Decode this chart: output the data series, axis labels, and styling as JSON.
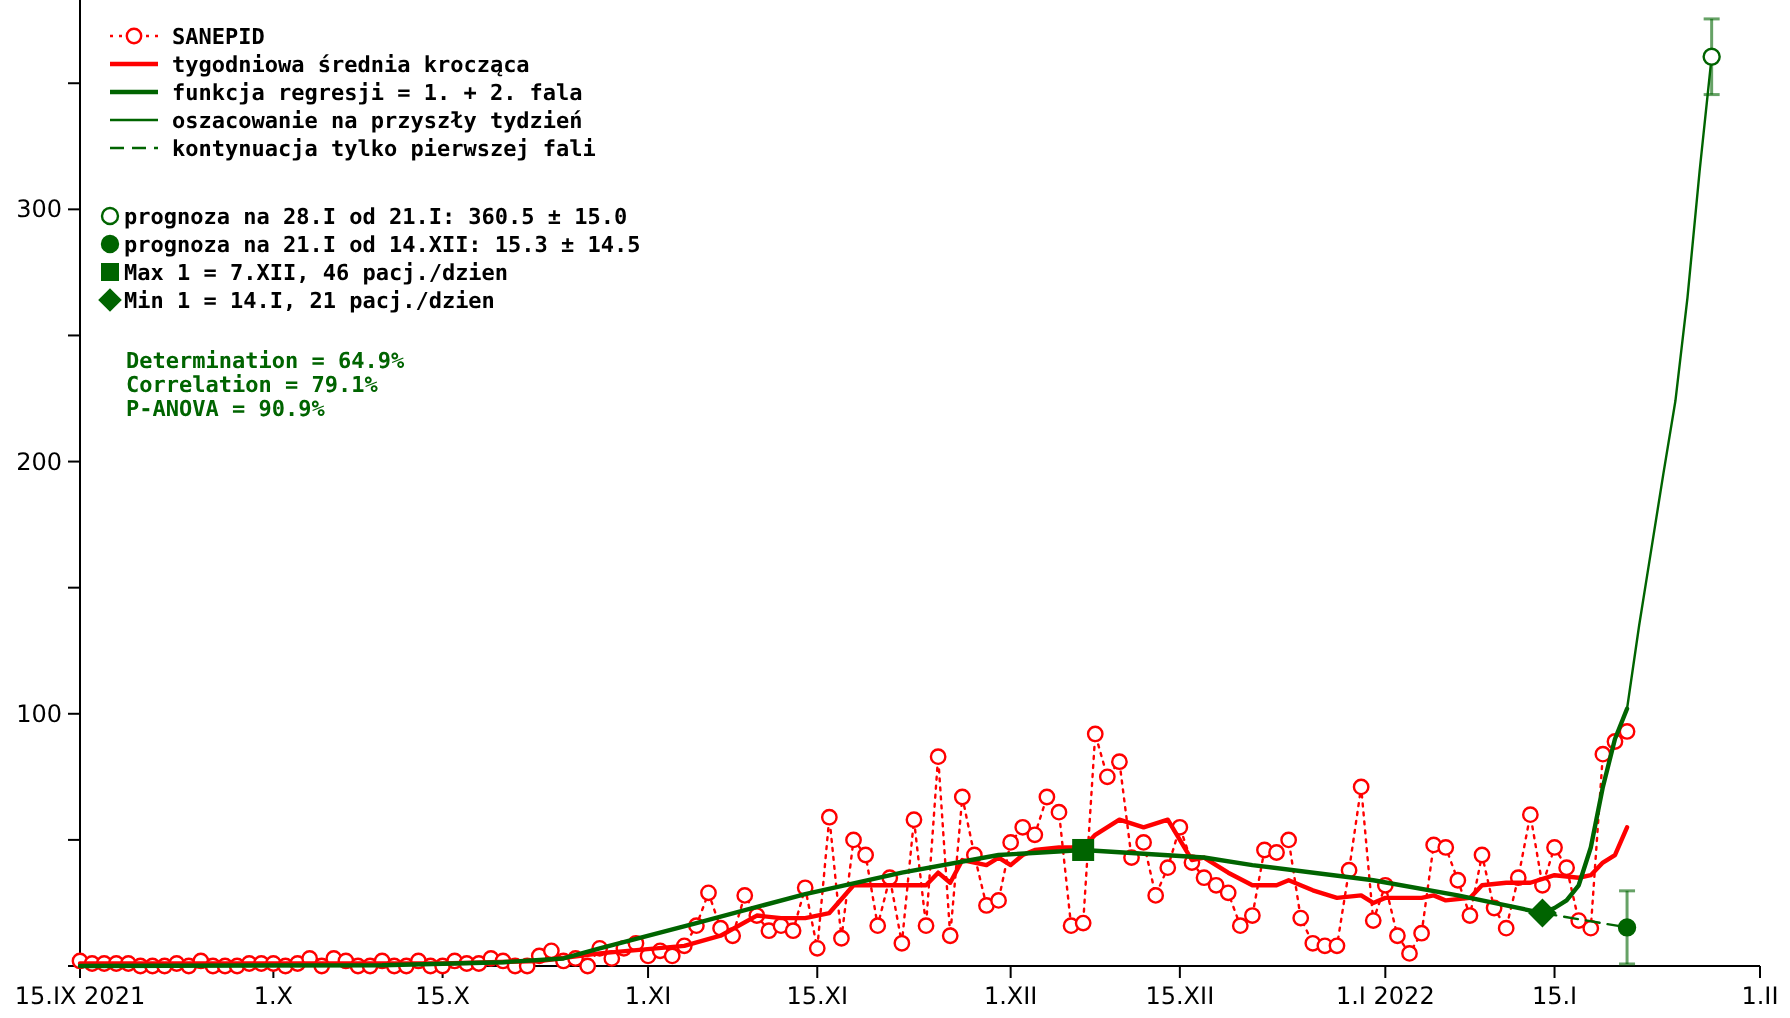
{
  "chart_data": {
    "type": "line",
    "xlim": [
      "2021-09-15",
      "2022-02-01"
    ],
    "ylim": [
      0,
      383
    ],
    "xticks": [
      {
        "value": "2021-09-15",
        "label": "15.IX 2021"
      },
      {
        "value": "2021-10-01",
        "label": "1.X"
      },
      {
        "value": "2021-10-15",
        "label": "15.X"
      },
      {
        "value": "2021-11-01",
        "label": "1.XI"
      },
      {
        "value": "2021-11-15",
        "label": "15.XI"
      },
      {
        "value": "2021-12-01",
        "label": "1.XII"
      },
      {
        "value": "2021-12-15",
        "label": "15.XII"
      },
      {
        "value": "2022-01-01",
        "label": "1.I 2022"
      },
      {
        "value": "2022-01-15",
        "label": "15.I"
      },
      {
        "value": "2022-02-01",
        "label": "1.II"
      }
    ],
    "yticks": [
      {
        "value": 0,
        "label": null
      },
      {
        "value": 50,
        "label": null
      },
      100,
      {
        "value": 150,
        "label": null
      },
      200,
      {
        "value": 250,
        "label": null
      },
      300,
      {
        "value": 350,
        "label": null
      }
    ],
    "grid": false,
    "legend": "top left",
    "annotations": [
      "Determination = 64.9%",
      "Correlation = 79.1%",
      "P-ANOVA = 90.9%"
    ],
    "series": [
      {
        "name": "SANEPID",
        "color": "#ff0000",
        "line_style": "dotted",
        "marker": "circle",
        "x": [
          "2021-09-15",
          "2021-09-16",
          "2021-09-17",
          "2021-09-18",
          "2021-09-19",
          "2021-09-20",
          "2021-09-21",
          "2021-09-22",
          "2021-09-23",
          "2021-09-24",
          "2021-09-25",
          "2021-09-26",
          "2021-09-27",
          "2021-09-28",
          "2021-09-29",
          "2021-09-30",
          "2021-10-01",
          "2021-10-02",
          "2021-10-03",
          "2021-10-04",
          "2021-10-05",
          "2021-10-06",
          "2021-10-07",
          "2021-10-08",
          "2021-10-09",
          "2021-10-10",
          "2021-10-11",
          "2021-10-12",
          "2021-10-13",
          "2021-10-14",
          "2021-10-15",
          "2021-10-16",
          "2021-10-17",
          "2021-10-18",
          "2021-10-19",
          "2021-10-20",
          "2021-10-21",
          "2021-10-22",
          "2021-10-23",
          "2021-10-24",
          "2021-10-25",
          "2021-10-26",
          "2021-10-27",
          "2021-10-28",
          "2021-10-29",
          "2021-10-30",
          "2021-10-31",
          "2021-11-01",
          "2021-11-02",
          "2021-11-03",
          "2021-11-04",
          "2021-11-05",
          "2021-11-06",
          "2021-11-07",
          "2021-11-08",
          "2021-11-09",
          "2021-11-10",
          "2021-11-11",
          "2021-11-12",
          "2021-11-13",
          "2021-11-14",
          "2021-11-15",
          "2021-11-16",
          "2021-11-17",
          "2021-11-18",
          "2021-11-19",
          "2021-11-20",
          "2021-11-21",
          "2021-11-22",
          "2021-11-23",
          "2021-11-24",
          "2021-11-25",
          "2021-11-26",
          "2021-11-27",
          "2021-11-28",
          "2021-11-29",
          "2021-11-30",
          "2021-12-01",
          "2021-12-02",
          "2021-12-03",
          "2021-12-04",
          "2021-12-05",
          "2021-12-06",
          "2021-12-07",
          "2021-12-08",
          "2021-12-09",
          "2021-12-10",
          "2021-12-11",
          "2021-12-12",
          "2021-12-13",
          "2021-12-14",
          "2021-12-15",
          "2021-12-16",
          "2021-12-17",
          "2021-12-18",
          "2021-12-19",
          "2021-12-20",
          "2021-12-21",
          "2021-12-22",
          "2021-12-23",
          "2021-12-24",
          "2021-12-25",
          "2021-12-26",
          "2021-12-27",
          "2021-12-28",
          "2021-12-29",
          "2021-12-30",
          "2021-12-31",
          "2022-01-01",
          "2022-01-02",
          "2022-01-03",
          "2022-01-04",
          "2022-01-05",
          "2022-01-06",
          "2022-01-07",
          "2022-01-08",
          "2022-01-09",
          "2022-01-10",
          "2022-01-11",
          "2022-01-12",
          "2022-01-13",
          "2022-01-14",
          "2022-01-15",
          "2022-01-16",
          "2022-01-17",
          "2022-01-18",
          "2022-01-19",
          "2022-01-20",
          "2022-01-21"
        ],
        "values": [
          2,
          1,
          1,
          1,
          1,
          0,
          0,
          0,
          1,
          0,
          2,
          0,
          0,
          0,
          1,
          1,
          1,
          0,
          1,
          3,
          0,
          3,
          2,
          0,
          0,
          2,
          0,
          0,
          2,
          0,
          0,
          2,
          1,
          1,
          3,
          2,
          0,
          0,
          4,
          6,
          2,
          3,
          0,
          7,
          3,
          7,
          9,
          4,
          6,
          4,
          8,
          16,
          29,
          15,
          12,
          28,
          20,
          14,
          16,
          14,
          31,
          7,
          59,
          11,
          50,
          44,
          16,
          35,
          9,
          58,
          16,
          83,
          12,
          67,
          44,
          24,
          26,
          49,
          55,
          52,
          67,
          61,
          16,
          17,
          92,
          75,
          81,
          43,
          49,
          28,
          39,
          55,
          41,
          35,
          32,
          29,
          16,
          20,
          46,
          45,
          50,
          19,
          9,
          8,
          8,
          38,
          71,
          18,
          32,
          12,
          5,
          13,
          48,
          47,
          34,
          20,
          44,
          23,
          15,
          35,
          60,
          32,
          47,
          39,
          18,
          15,
          84,
          89,
          93
        ]
      },
      {
        "name": "tygodniowa średnia krocząca",
        "color": "#ff0000",
        "line_style": "solid",
        "marker": "none",
        "x": [
          "2021-09-15",
          "2021-09-25",
          "2021-10-05",
          "2021-10-15",
          "2021-10-23",
          "2021-10-28",
          "2021-11-04",
          "2021-11-07",
          "2021-11-10",
          "2021-11-12",
          "2021-11-14",
          "2021-11-16",
          "2021-11-18",
          "2021-11-20",
          "2021-11-22",
          "2021-11-24",
          "2021-11-25",
          "2021-11-26",
          "2021-11-27",
          "2021-11-29",
          "2021-11-30",
          "2021-12-01",
          "2021-12-02",
          "2021-12-03",
          "2021-12-05",
          "2021-12-07",
          "2021-12-08",
          "2021-12-10",
          "2021-12-12",
          "2021-12-14",
          "2021-12-16",
          "2021-12-17",
          "2021-12-19",
          "2021-12-21",
          "2021-12-23",
          "2021-12-24",
          "2021-12-26",
          "2021-12-28",
          "2021-12-30",
          "2021-12-31",
          "2022-01-01",
          "2022-01-04",
          "2022-01-05",
          "2022-01-06",
          "2022-01-08",
          "2022-01-09",
          "2022-01-11",
          "2022-01-13",
          "2022-01-15",
          "2022-01-17",
          "2022-01-18",
          "2022-01-19",
          "2022-01-20",
          "2022-01-21"
        ],
        "values": [
          1,
          1,
          1,
          1,
          2,
          5,
          8,
          12,
          20,
          19,
          19,
          21,
          32,
          32,
          32,
          32,
          37,
          33,
          42,
          40,
          43,
          40,
          44,
          46,
          47,
          47,
          52,
          58,
          55,
          58,
          42,
          43,
          37,
          32,
          32,
          34,
          30,
          27,
          28,
          25,
          27,
          27,
          28,
          26,
          27,
          32,
          33,
          33,
          36,
          35,
          36,
          41,
          44,
          55
        ]
      },
      {
        "name": "funkcja regresji = 1. + 2. fala",
        "color": "#006400",
        "line_style": "solid",
        "marker": "none",
        "x": [
          "2021-09-15",
          "2021-10-10",
          "2021-10-20",
          "2021-10-25",
          "2021-10-28",
          "2021-11-05",
          "2021-11-14",
          "2021-11-22",
          "2021-11-30",
          "2021-12-07",
          "2021-12-17",
          "2021-12-21",
          "2021-12-31",
          "2022-01-07",
          "2022-01-14",
          "2022-01-15",
          "2022-01-16",
          "2022-01-17",
          "2022-01-18",
          "2022-01-19",
          "2022-01-20",
          "2022-01-21"
        ],
        "values": [
          0,
          0.3,
          1.5,
          3,
          7,
          17,
          28.5,
          37,
          44,
          46,
          43,
          40,
          34,
          28,
          21,
          23,
          26,
          32,
          47,
          71,
          90,
          102
        ]
      },
      {
        "name": "oszacowanie na przyszły tydzień",
        "color": "#006400",
        "line_style": "solid",
        "marker": "none",
        "x": [
          "2022-01-21",
          "2022-01-22",
          "2022-01-23",
          "2022-01-24",
          "2022-01-25",
          "2022-01-26",
          "2022-01-27",
          "2022-01-28"
        ],
        "values": [
          102,
          135,
          165,
          195,
          224,
          265,
          315,
          360.5
        ]
      },
      {
        "name": "kontynuacja tylko pierwszej fali",
        "color": "#006400",
        "line_style": "dashed",
        "marker": "none",
        "x": [
          "2022-01-14",
          "2022-01-21"
        ],
        "values": [
          21,
          15.3
        ]
      },
      {
        "name": "prognoza na 28.I od 21.I: 360.5 ± 15.0",
        "type": "scatter",
        "color": "#006400",
        "marker": "circle",
        "x": [
          "2022-01-28"
        ],
        "values": [
          360.5
        ],
        "errors": [
          15.0
        ]
      },
      {
        "name": "prognoza na 21.I od 14.XII: 15.3 ± 14.5",
        "type": "scatter",
        "color": "#006400",
        "marker": "circle",
        "x": [
          "2022-01-21"
        ],
        "values": [
          15.3
        ],
        "errors": [
          14.5
        ]
      },
      {
        "name": "Max 1 = 7.XII, 46 pacj./dzien",
        "type": "scatter",
        "color": "#006400",
        "marker": "square",
        "x": [
          "2021-12-07"
        ],
        "values": [
          46
        ]
      },
      {
        "name": "Min 1 = 14.I, 21 pacj./dzien",
        "type": "scatter",
        "color": "#006400",
        "marker": "diamond",
        "x": [
          "2022-01-14"
        ],
        "values": [
          21
        ]
      }
    ]
  }
}
